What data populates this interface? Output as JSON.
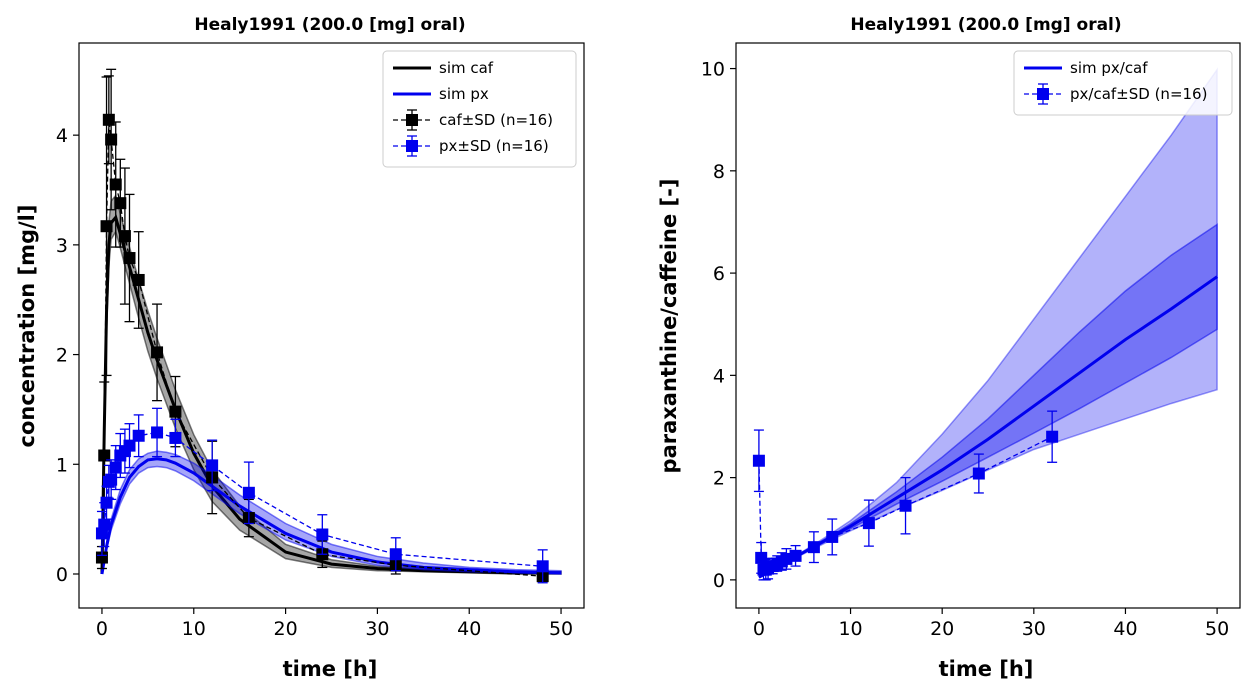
{
  "chart_data": [
    {
      "type": "line",
      "title": "Healy1991 (200.0 [mg] oral)",
      "xlabel": "time [h]",
      "ylabel": "concentration [mg/l]",
      "xlim": [
        -2.5,
        52.5
      ],
      "ylim": [
        -0.31,
        4.84
      ],
      "xticks": [
        0,
        10,
        20,
        30,
        40,
        50
      ],
      "yticks": [
        0,
        1,
        2,
        3,
        4
      ],
      "xtick_labels": [
        "0",
        "10",
        "20",
        "30",
        "40",
        "50"
      ],
      "ytick_labels": [
        "0",
        "1",
        "2",
        "3",
        "4"
      ],
      "legend_position": "top-right",
      "legend": [
        "sim caf",
        "sim px",
        "caf±SD (n=16)",
        "px±SD (n=16)"
      ],
      "simulations": [
        {
          "name": "sim caf",
          "color": "#000000",
          "x": [
            0,
            0.25,
            0.5,
            0.75,
            1,
            1.5,
            2,
            3,
            4,
            5,
            6,
            8,
            10,
            12,
            15,
            20,
            25,
            30,
            35,
            40,
            45,
            50
          ],
          "y": [
            0,
            1.3,
            2.4,
            3.0,
            3.2,
            3.25,
            3.1,
            2.8,
            2.5,
            2.2,
            1.95,
            1.5,
            1.1,
            0.8,
            0.5,
            0.2,
            0.09,
            0.05,
            0.03,
            0.02,
            0.01,
            0.01
          ],
          "band_lo": [
            0,
            1.15,
            2.2,
            2.8,
            3.05,
            3.12,
            2.97,
            2.65,
            2.33,
            2.03,
            1.78,
            1.33,
            0.95,
            0.66,
            0.4,
            0.14,
            0.06,
            0.03,
            0.02,
            0.01,
            0.0,
            0.0
          ],
          "band_hi": [
            0,
            1.45,
            2.6,
            3.2,
            3.4,
            3.45,
            3.28,
            2.98,
            2.68,
            2.4,
            2.15,
            1.68,
            1.27,
            0.95,
            0.62,
            0.27,
            0.13,
            0.07,
            0.05,
            0.03,
            0.02,
            0.02
          ]
        },
        {
          "name": "sim px",
          "color": "#0000ee",
          "x": [
            0,
            0.5,
            1,
            2,
            3,
            4,
            5,
            6,
            7,
            8,
            10,
            12,
            15,
            20,
            25,
            30,
            35,
            40,
            45,
            50
          ],
          "y": [
            0,
            0.25,
            0.45,
            0.7,
            0.88,
            0.98,
            1.04,
            1.05,
            1.04,
            1.01,
            0.92,
            0.8,
            0.62,
            0.37,
            0.2,
            0.11,
            0.06,
            0.04,
            0.02,
            0.01
          ],
          "band_lo": [
            0,
            0.22,
            0.4,
            0.64,
            0.82,
            0.92,
            0.97,
            0.98,
            0.97,
            0.94,
            0.85,
            0.73,
            0.55,
            0.31,
            0.16,
            0.08,
            0.04,
            0.02,
            0.01,
            0.0
          ],
          "band_hi": [
            0,
            0.28,
            0.5,
            0.77,
            0.95,
            1.05,
            1.1,
            1.12,
            1.11,
            1.09,
            1.01,
            0.9,
            0.72,
            0.46,
            0.27,
            0.16,
            0.1,
            0.06,
            0.04,
            0.03
          ]
        }
      ],
      "series": [
        {
          "name": "caf±SD (n=16)",
          "color": "#000000",
          "x": [
            0,
            0.25,
            0.5,
            0.75,
            1,
            1.5,
            2,
            2.5,
            3,
            4,
            6,
            8,
            12,
            16,
            24,
            32,
            48
          ],
          "y": [
            0.15,
            1.08,
            3.17,
            4.14,
            3.96,
            3.55,
            3.38,
            3.08,
            2.88,
            2.68,
            2.02,
            1.48,
            0.88,
            0.51,
            0.18,
            0.08,
            -0.02
          ],
          "sd": [
            0.1,
            0.67,
            1.36,
            0.4,
            0.64,
            0.57,
            0.4,
            0.62,
            0.58,
            0.44,
            0.44,
            0.32,
            0.33,
            0.17,
            0.12,
            0.08,
            0.02
          ]
        },
        {
          "name": "px±SD (n=16)",
          "color": "#0000ee",
          "x": [
            0,
            0.25,
            0.5,
            0.75,
            1,
            1.5,
            2,
            2.5,
            3,
            4,
            6,
            8,
            12,
            16,
            24,
            32,
            48
          ],
          "y": [
            0.37,
            0.45,
            0.65,
            0.84,
            0.86,
            0.97,
            1.08,
            1.12,
            1.17,
            1.26,
            1.29,
            1.24,
            0.99,
            0.74,
            0.36,
            0.18,
            0.07
          ],
          "sd": [
            0.2,
            0.2,
            0.15,
            0.15,
            0.18,
            0.2,
            0.2,
            0.2,
            0.2,
            0.19,
            0.22,
            0.17,
            0.23,
            0.28,
            0.18,
            0.15,
            0.15
          ]
        }
      ]
    },
    {
      "type": "line",
      "title": "Healy1991 (200.0 [mg] oral)",
      "xlabel": "time [h]",
      "ylabel": "paraxanthine/caffeine [-]",
      "xlim": [
        -2.5,
        52.5
      ],
      "ylim": [
        -0.55,
        10.5
      ],
      "xticks": [
        0,
        10,
        20,
        30,
        40,
        50
      ],
      "yticks": [
        0,
        2,
        4,
        6,
        8,
        10
      ],
      "xtick_labels": [
        "0",
        "10",
        "20",
        "30",
        "40",
        "50"
      ],
      "ytick_labels": [
        "0",
        "2",
        "4",
        "6",
        "8",
        "10"
      ],
      "legend_position": "top-right",
      "legend": [
        "sim px/caf",
        "px/caf±SD (n=16)"
      ],
      "simulations": [
        {
          "name": "sim px/caf",
          "color": "#0000ee",
          "x": [
            0,
            1,
            2,
            4,
            6,
            8,
            10,
            15,
            20,
            25,
            30,
            35,
            40,
            45,
            50
          ],
          "y": [
            0.05,
            0.15,
            0.25,
            0.45,
            0.65,
            0.85,
            1.05,
            1.6,
            2.15,
            2.75,
            3.4,
            4.05,
            4.7,
            5.3,
            5.93
          ],
          "band_lo": [
            0.05,
            0.15,
            0.25,
            0.44,
            0.63,
            0.82,
            1.0,
            1.48,
            1.93,
            2.4,
            2.87,
            3.35,
            3.85,
            4.35,
            4.9
          ],
          "band_hi": [
            0.05,
            0.15,
            0.25,
            0.46,
            0.67,
            0.88,
            1.1,
            1.72,
            2.4,
            3.15,
            4.0,
            4.85,
            5.65,
            6.35,
            6.95
          ],
          "band2_lo": [
            0.05,
            0.15,
            0.25,
            0.43,
            0.61,
            0.79,
            0.96,
            1.37,
            1.75,
            2.15,
            2.55,
            2.85,
            3.15,
            3.45,
            3.72
          ],
          "band2_hi": [
            0.05,
            0.15,
            0.25,
            0.47,
            0.69,
            0.92,
            1.16,
            1.9,
            2.85,
            3.9,
            5.1,
            6.3,
            7.5,
            8.7,
            9.98
          ]
        }
      ],
      "series": [
        {
          "name": "px/caf±SD (n=16)",
          "color": "#0000ee",
          "x": [
            0,
            0.25,
            0.5,
            0.75,
            1,
            1.5,
            2,
            2.5,
            3,
            4,
            6,
            8,
            12,
            16,
            24,
            32
          ],
          "y": [
            2.33,
            0.43,
            0.2,
            0.2,
            0.22,
            0.27,
            0.32,
            0.36,
            0.41,
            0.47,
            0.64,
            0.84,
            1.11,
            1.45,
            2.08,
            2.8
          ],
          "sd": [
            0.6,
            0.3,
            0.2,
            0.2,
            0.2,
            0.15,
            0.15,
            0.17,
            0.2,
            0.2,
            0.3,
            0.35,
            0.45,
            0.55,
            0.38,
            0.5
          ]
        }
      ]
    }
  ]
}
